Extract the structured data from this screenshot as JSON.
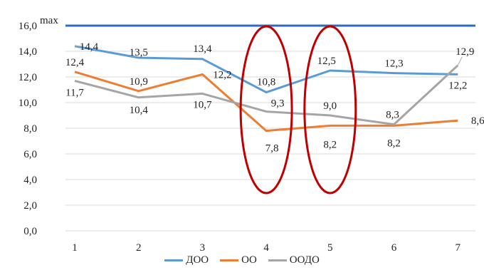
{
  "chart_data": {
    "type": "line",
    "x": [
      1,
      2,
      3,
      4,
      5,
      6,
      7
    ],
    "ylim": [
      0,
      16
    ],
    "yticks": [
      "0,0",
      "2,0",
      "4,0",
      "6,0",
      "8,0",
      "10,0",
      "12,0",
      "14,0",
      "16,0"
    ],
    "xticks": [
      "1",
      "2",
      "3",
      "4",
      "5",
      "6",
      "7"
    ],
    "max_line": {
      "value": 16,
      "label": "max",
      "color": "#2e6bbf"
    },
    "series": [
      {
        "name": "ДОО",
        "color": "#5b9bd5",
        "values": [
          14.4,
          13.5,
          13.4,
          10.8,
          12.5,
          12.3,
          12.2
        ],
        "labels": [
          "14,4",
          "13,5",
          "13,4",
          "10,8",
          "12,5",
          "12,3",
          "12,2"
        ]
      },
      {
        "name": "ОО",
        "color": "#ed7d31",
        "values": [
          12.4,
          10.9,
          12.2,
          7.8,
          8.2,
          8.2,
          8.6
        ],
        "labels": [
          "12,4",
          "10,9",
          "12,2",
          "7,8",
          "8,2",
          "8,2",
          "8,6"
        ]
      },
      {
        "name": "ООДО",
        "color": "#a5a5a5",
        "values": [
          11.7,
          10.4,
          10.7,
          9.3,
          9.0,
          8.3,
          12.9
        ],
        "labels": [
          "11,7",
          "10,4",
          "10,7",
          "9,3",
          "9,0",
          "8,3",
          "12,9"
        ]
      }
    ],
    "highlight_color": "#c00000",
    "highlights_at_x": [
      4,
      5
    ],
    "grid": true,
    "legend_position": "bottom"
  }
}
